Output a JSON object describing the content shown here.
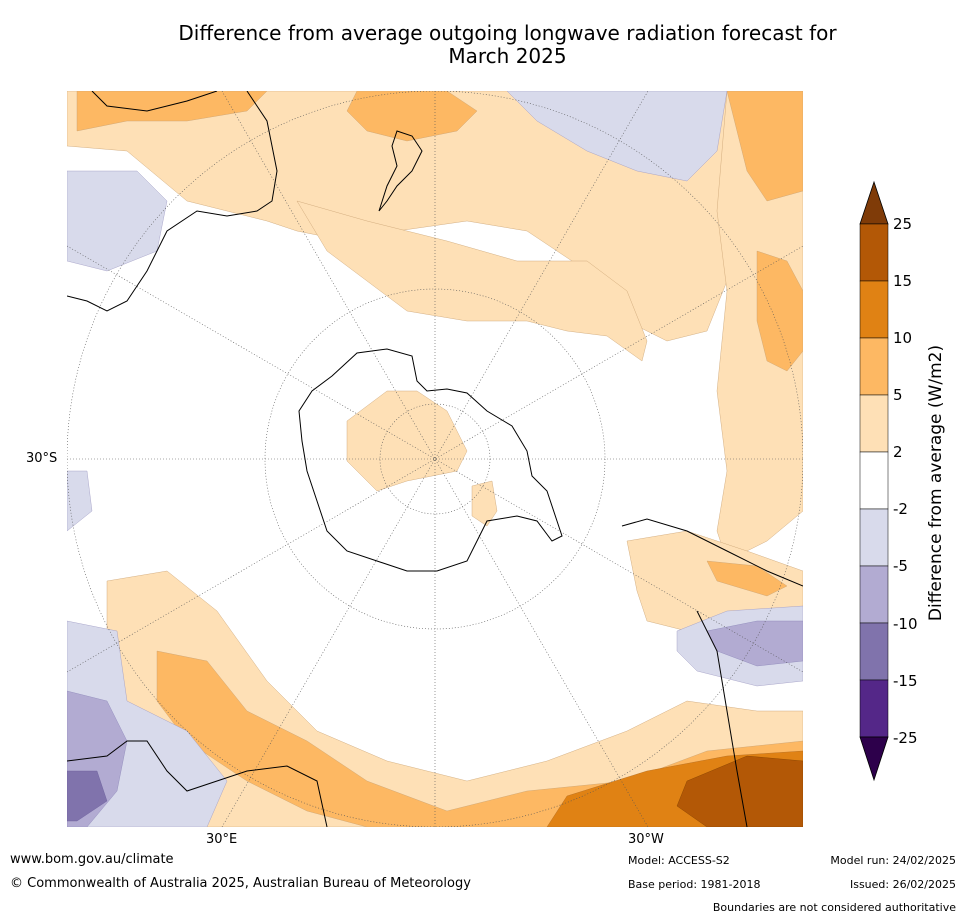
{
  "title_line1": "Difference from average outgoing longwave radiation forecast for",
  "title_line2": "March 2025",
  "map_labels": {
    "lat_30s": "30°S",
    "lon_30e": "30°E",
    "lon_30w": "30°W"
  },
  "colorbar": {
    "label": "Difference from average (W/m2)",
    "ticks": [
      "25",
      "15",
      "10",
      "5",
      "2",
      "-2",
      "-5",
      "-10",
      "-15",
      "-25"
    ],
    "colors": {
      "gt25": "#7f3b08",
      "15_25": "#b35806",
      "10_15": "#e08214",
      "5_10": "#fdb863",
      "2_5": "#fee0b6",
      "neutral": "#ffffff",
      "m2_m5": "#d8daeb",
      "m5_m10": "#b2abd2",
      "m10_m15": "#8073ac",
      "m15_m25": "#542788",
      "lt_m25": "#2d004b"
    }
  },
  "footer": {
    "website": "www.bom.gov.au/climate",
    "copyright": "© Commonwealth of Australia 2025, Australian Bureau of Meteorology",
    "model": "Model: ACCESS-S2",
    "base_period": "Base period: 1981-2018",
    "model_run": "Model run: 24/02/2025",
    "issued": "Issued: 26/02/2025",
    "disclaimer": "Boundaries are not considered authoritative"
  }
}
